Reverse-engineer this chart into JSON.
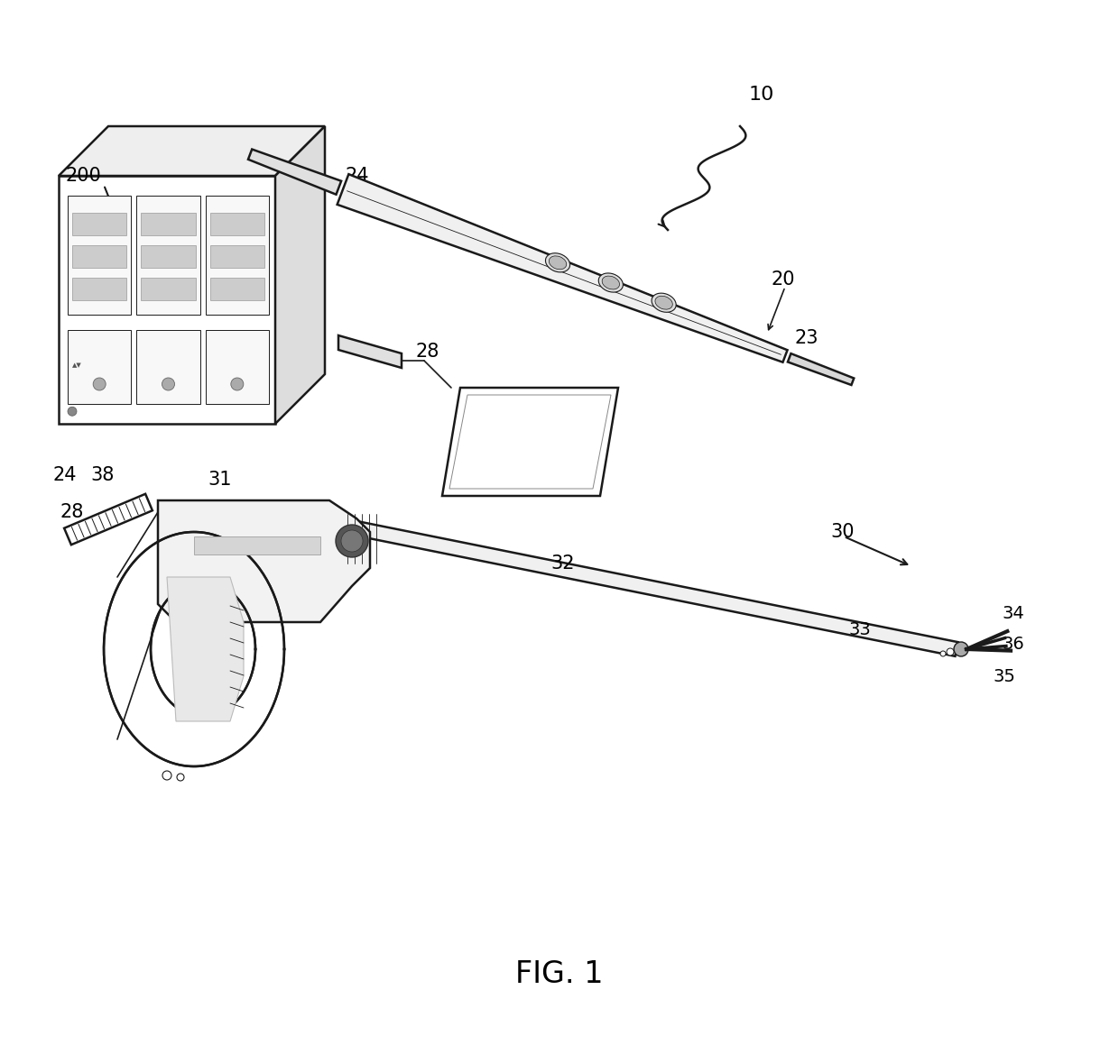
{
  "background_color": "#ffffff",
  "line_color": "#1a1a1a",
  "fig_width": 12.4,
  "fig_height": 11.69,
  "dpi": 100
}
